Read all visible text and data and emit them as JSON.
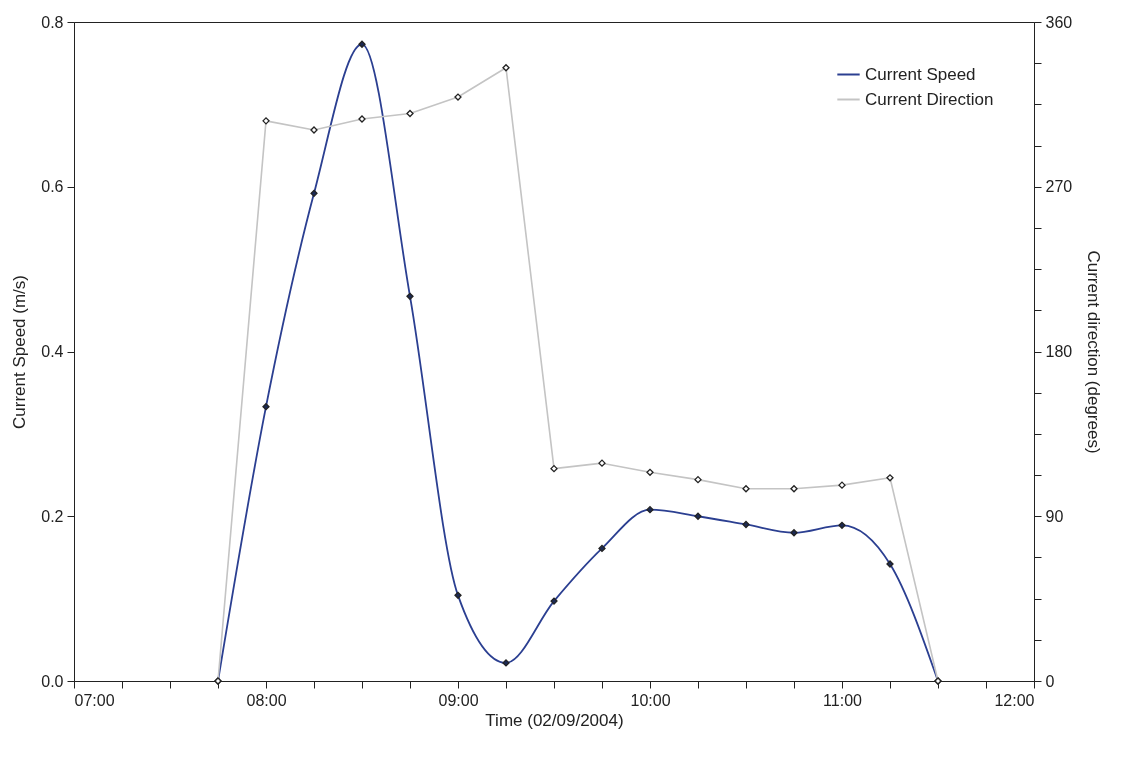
{
  "chart_data": {
    "type": "line",
    "xlabel": "Time (02/09/2004)",
    "ylabel": "Current Speed (m/s)",
    "y2label": "Current direction (degrees)",
    "x": [
      7.75,
      8,
      8.25,
      8.5,
      8.75,
      9,
      9.25,
      9.5,
      9.75,
      10,
      10.25,
      10.5,
      10.75,
      11,
      11.25,
      11.5
    ],
    "xlim": [
      7,
      12
    ],
    "xticks": [
      {
        "value": 7,
        "label": "07:00"
      },
      {
        "value": 7.25,
        "label": null
      },
      {
        "value": 7.5,
        "label": null
      },
      {
        "value": 7.75,
        "label": null
      },
      {
        "value": 8,
        "label": "08:00"
      },
      {
        "value": 8.25,
        "label": null
      },
      {
        "value": 8.5,
        "label": null
      },
      {
        "value": 8.75,
        "label": null
      },
      {
        "value": 9,
        "label": "09:00"
      },
      {
        "value": 9.25,
        "label": null
      },
      {
        "value": 9.5,
        "label": null
      },
      {
        "value": 9.75,
        "label": null
      },
      {
        "value": 10,
        "label": "10:00"
      },
      {
        "value": 10.25,
        "label": null
      },
      {
        "value": 10.5,
        "label": null
      },
      {
        "value": 10.75,
        "label": null
      },
      {
        "value": 11,
        "label": "11:00"
      },
      {
        "value": 11.25,
        "label": null
      },
      {
        "value": 11.5,
        "label": null
      },
      {
        "value": 11.75,
        "label": null
      },
      {
        "value": 12,
        "label": "12:00"
      }
    ],
    "ylim": [
      0,
      0.8
    ],
    "yticks": [
      {
        "value": 0,
        "label": "0.0"
      },
      {
        "value": 0.2,
        "label": "0.2"
      },
      {
        "value": 0.4,
        "label": "0.4"
      },
      {
        "value": 0.6,
        "label": "0.6"
      },
      {
        "value": 0.8,
        "label": "0.8"
      }
    ],
    "y2lim": [
      0,
      360
    ],
    "y2ticks": [
      0,
      {
        "value": 22.5,
        "label": null
      },
      {
        "value": 45,
        "label": null
      },
      {
        "value": 67.5,
        "label": null
      },
      90,
      {
        "value": 112.5,
        "label": null
      },
      {
        "value": 135,
        "label": null
      },
      {
        "value": 157.5,
        "label": null
      },
      180,
      {
        "value": 202.5,
        "label": null
      },
      {
        "value": 225,
        "label": null
      },
      {
        "value": 247.5,
        "label": null
      },
      270,
      {
        "value": 292.5,
        "label": null
      },
      {
        "value": 315,
        "label": null
      },
      {
        "value": 337.5,
        "label": null
      },
      360
    ],
    "series": [
      {
        "name": "Current Speed",
        "color": "#2b3f91",
        "values": [
          0,
          0.333,
          0.592,
          0.773,
          0.467,
          0.104,
          0.022,
          0.097,
          0.161,
          0.208,
          0.2,
          0.19,
          0.18,
          0.189,
          0.142,
          0
        ]
      },
      {
        "name": "Current Direction",
        "color": "#c4c4c4",
        "axis": "y2",
        "values": [
          0,
          306,
          301,
          307,
          310,
          319,
          335,
          116,
          119,
          114,
          110,
          105,
          105,
          107,
          111,
          0
        ]
      }
    ],
    "marker": "diamond",
    "grid": false,
    "legend": "top right"
  }
}
